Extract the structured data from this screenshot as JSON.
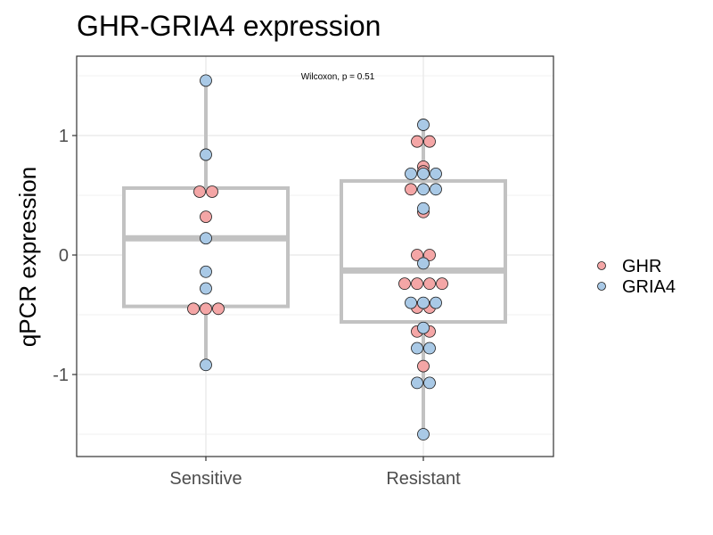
{
  "chart_data": {
    "type": "box",
    "title": "GHR-GRIA4 expression",
    "xlabel": "",
    "ylabel": "qPCR expression",
    "categories": [
      "Sensitive",
      "Resistant"
    ],
    "ylim": [
      -1.6,
      1.65
    ],
    "y_ticks": [
      -1,
      0,
      1
    ],
    "grid": true,
    "annotation": "Wilcoxon, p = 0.51",
    "legend": {
      "position": "right",
      "entries": [
        {
          "label": "GHR",
          "color": "#F4A6A6"
        },
        {
          "label": "GRIA4",
          "color": "#A9C9E6"
        }
      ]
    },
    "box_color": "#C2C2C2",
    "boxes": [
      {
        "category": "Sensitive",
        "lower_whisker": -0.92,
        "q1": -0.43,
        "median": 0.14,
        "q3": 0.56,
        "upper_whisker": 1.46
      },
      {
        "category": "Resistant",
        "lower_whisker": -1.5,
        "q1": -0.56,
        "median": -0.13,
        "q3": 0.62,
        "upper_whisker": 1.09
      }
    ],
    "series": [
      {
        "name": "GHR",
        "color": "#F4A6A6",
        "points": [
          {
            "x": "Sensitive",
            "y": 0.53
          },
          {
            "x": "Sensitive",
            "y": 0.53
          },
          {
            "x": "Sensitive",
            "y": 0.32
          },
          {
            "x": "Sensitive",
            "y": -0.45
          },
          {
            "x": "Sensitive",
            "y": -0.45
          },
          {
            "x": "Sensitive",
            "y": -0.45
          },
          {
            "x": "Resistant",
            "y": 0.95
          },
          {
            "x": "Resistant",
            "y": 0.95
          },
          {
            "x": "Resistant",
            "y": 0.74
          },
          {
            "x": "Resistant",
            "y": 0.7
          },
          {
            "x": "Resistant",
            "y": 0.55
          },
          {
            "x": "Resistant",
            "y": 0.36
          },
          {
            "x": "Resistant",
            "y": 0.0
          },
          {
            "x": "Resistant",
            "y": 0.0
          },
          {
            "x": "Resistant",
            "y": -0.24
          },
          {
            "x": "Resistant",
            "y": -0.24
          },
          {
            "x": "Resistant",
            "y": -0.24
          },
          {
            "x": "Resistant",
            "y": -0.24
          },
          {
            "x": "Resistant",
            "y": -0.44
          },
          {
            "x": "Resistant",
            "y": -0.44
          },
          {
            "x": "Resistant",
            "y": -0.64
          },
          {
            "x": "Resistant",
            "y": -0.64
          },
          {
            "x": "Resistant",
            "y": -0.93
          }
        ]
      },
      {
        "name": "GRIA4",
        "color": "#A9C9E6",
        "points": [
          {
            "x": "Sensitive",
            "y": 1.46
          },
          {
            "x": "Sensitive",
            "y": 0.84
          },
          {
            "x": "Sensitive",
            "y": 0.14
          },
          {
            "x": "Sensitive",
            "y": -0.14
          },
          {
            "x": "Sensitive",
            "y": -0.28
          },
          {
            "x": "Sensitive",
            "y": -0.92
          },
          {
            "x": "Resistant",
            "y": 1.09
          },
          {
            "x": "Resistant",
            "y": 0.68
          },
          {
            "x": "Resistant",
            "y": 0.68
          },
          {
            "x": "Resistant",
            "y": 0.68
          },
          {
            "x": "Resistant",
            "y": 0.55
          },
          {
            "x": "Resistant",
            "y": 0.55
          },
          {
            "x": "Resistant",
            "y": 0.39
          },
          {
            "x": "Resistant",
            "y": -0.07
          },
          {
            "x": "Resistant",
            "y": -0.4
          },
          {
            "x": "Resistant",
            "y": -0.4
          },
          {
            "x": "Resistant",
            "y": -0.4
          },
          {
            "x": "Resistant",
            "y": -0.61
          },
          {
            "x": "Resistant",
            "y": -0.78
          },
          {
            "x": "Resistant",
            "y": -0.78
          },
          {
            "x": "Resistant",
            "y": -1.07
          },
          {
            "x": "Resistant",
            "y": -1.07
          },
          {
            "x": "Resistant",
            "y": -1.5
          }
        ]
      }
    ]
  }
}
